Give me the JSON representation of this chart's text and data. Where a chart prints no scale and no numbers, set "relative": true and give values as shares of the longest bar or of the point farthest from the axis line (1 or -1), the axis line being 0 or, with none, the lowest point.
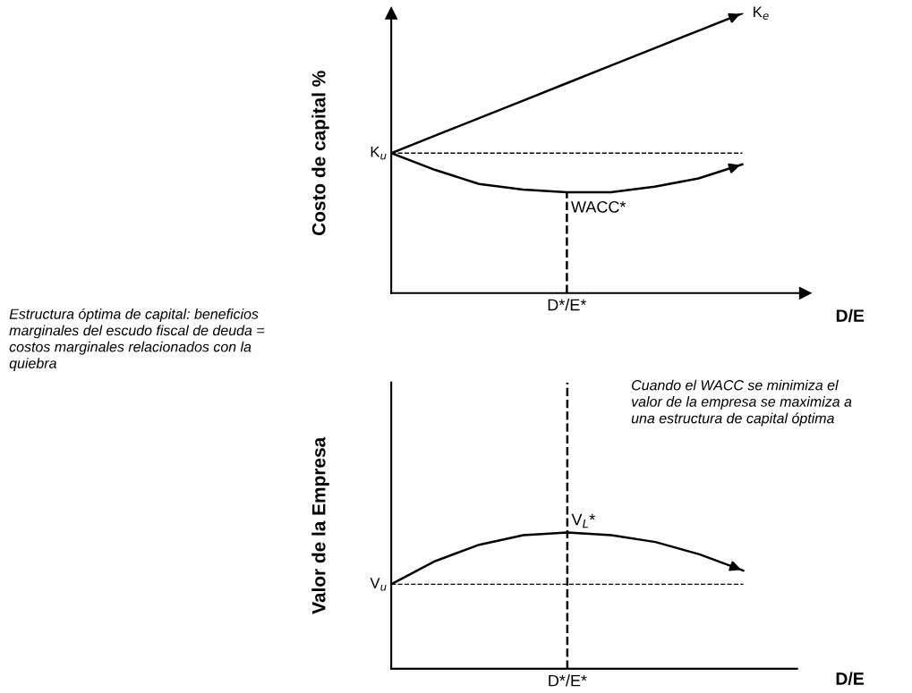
{
  "chart_data": [
    {
      "type": "line",
      "ylabel": "Costo de capital %",
      "xlabel": "D/E",
      "relative": true,
      "marker": "none",
      "categories": [
        null,
        null,
        null,
        null,
        null,
        null,
        null,
        null,
        null
      ],
      "series": [
        {
          "name": "K$_{e}$",
          "color": "#000000",
          "values": [
            0.5,
            0.5625,
            0.625,
            0.6875,
            0.75,
            0.8125,
            0.875,
            0.9375,
            1.0
          ]
        },
        {
          "color": "#000000",
          "values": [
            0.5,
            0.44,
            0.39,
            0.37,
            0.36,
            0.36,
            0.38,
            0.41,
            0.46
          ]
        },
        {
          "color": "#000000",
          "line_style": "dashed",
          "values": [
            0.5,
            0.5,
            0.5,
            0.5,
            0.5,
            0.5,
            0.5,
            0.5,
            0.5
          ]
        }
      ],
      "annotations": [
        "K$_{u}$",
        "WACC*",
        "D*/E*",
        "Estructura óptima de capital: beneficios\nmarginales del escudo fiscal de deuda =\ncostos marginales relacionados con la\nquiebra"
      ]
    },
    {
      "type": "line",
      "ylabel": "Valor de la Empresa",
      "xlabel": "D/E",
      "relative": true,
      "marker": "none",
      "categories": [
        null,
        null,
        null,
        null,
        null,
        null,
        null,
        null,
        null
      ],
      "series": [
        {
          "color": "#000000",
          "values": [
            0.62,
            0.79,
            0.91,
            0.98,
            1.0,
            0.98,
            0.93,
            0.84,
            0.72
          ]
        },
        {
          "color": "#000000",
          "line_style": "dashed",
          "values": [
            0.62,
            0.62,
            0.62,
            0.62,
            0.62,
            0.62,
            0.62,
            0.62,
            0.62
          ]
        }
      ],
      "annotations": [
        "V$_{u}$",
        "V$_{L}$*",
        "D*/E*",
        "Cuando el WACC se minimiza el\nvalor de la empresa se maximiza a\nuna estructura de capital óptima"
      ]
    }
  ]
}
